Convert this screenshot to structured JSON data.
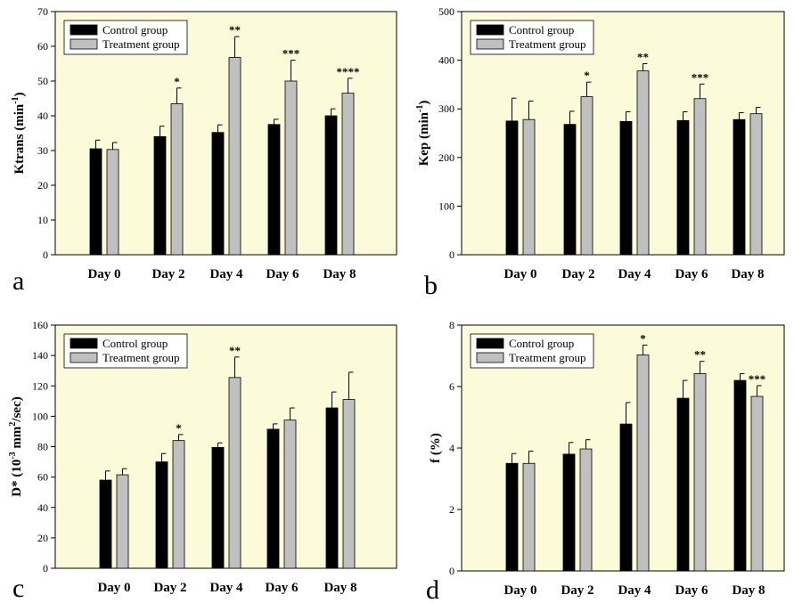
{
  "colors": {
    "plot_bg": "#fbfbd9",
    "control": "#000000",
    "treatment": "#c0c0c0",
    "error": "#000000"
  },
  "chart_data": [
    {
      "type": "bar",
      "panel_label": "a",
      "categories": [
        "Day 0",
        "Day 2",
        "Day 4",
        "Day 6",
        "Day 8"
      ],
      "ylabel_main": "Ktrans (min",
      "ylabel_sup": "-1",
      "ylabel_end": ")",
      "ylim": [
        0,
        70
      ],
      "yticks": [
        0,
        10,
        20,
        30,
        40,
        50,
        60,
        70
      ],
      "legend": "top-left",
      "series": [
        {
          "name": "Control group",
          "values": [
            30.5,
            34,
            35.2,
            37.5,
            40
          ],
          "errors": [
            2.5,
            3,
            2.2,
            1.5,
            2
          ]
        },
        {
          "name": "Treatment group",
          "values": [
            30.3,
            43.5,
            56.8,
            50,
            46.5
          ],
          "errors": [
            2,
            4.5,
            6,
            6,
            4.3
          ],
          "annotations": [
            "",
            "*",
            "**",
            "***",
            "****"
          ]
        }
      ]
    },
    {
      "type": "bar",
      "panel_label": "b",
      "categories": [
        "Day 0",
        "Day 2",
        "Day 4",
        "Day 6",
        "Day 8"
      ],
      "ylabel_main": "Kep (min",
      "ylabel_sup": "-1",
      "ylabel_end": ")",
      "ylim": [
        0,
        500
      ],
      "yticks": [
        0,
        100,
        200,
        300,
        400,
        500
      ],
      "legend": "top-left",
      "series": [
        {
          "name": "Control group",
          "values": [
            275,
            268,
            274,
            276,
            278
          ],
          "errors": [
            47,
            27,
            20,
            18,
            14
          ]
        },
        {
          "name": "Treatment group",
          "values": [
            278,
            325,
            378,
            321,
            290
          ],
          "errors": [
            38,
            30,
            15,
            30,
            13
          ],
          "annotations": [
            "",
            "*",
            "**",
            "***",
            ""
          ]
        }
      ]
    },
    {
      "type": "bar",
      "panel_label": "c",
      "categories": [
        "Day 0",
        "Day 2",
        "Day 4",
        "Day 6",
        "Day 8"
      ],
      "ylabel_main": "D* (10",
      "ylabel_sup": "-3",
      "ylabel_mid": " mm",
      "ylabel_sup2": "2",
      "ylabel_end": "/sec)",
      "ylim": [
        0,
        160
      ],
      "yticks": [
        0,
        20,
        40,
        60,
        80,
        100,
        120,
        140,
        160
      ],
      "legend": "top-left",
      "series": [
        {
          "name": "Control group",
          "values": [
            58,
            70,
            79.5,
            91.5,
            105.5
          ],
          "errors": [
            6,
            5.5,
            3,
            3.5,
            10.5
          ]
        },
        {
          "name": "Treatment group",
          "values": [
            61.5,
            84,
            125.5,
            97.5,
            111
          ],
          "errors": [
            4,
            4,
            13.5,
            8,
            18
          ],
          "annotations": [
            "",
            "*",
            "**",
            "",
            ""
          ]
        }
      ]
    },
    {
      "type": "bar",
      "panel_label": "d",
      "categories": [
        "Day 0",
        "Day 2",
        "Day 4",
        "Day 6",
        "Day 8"
      ],
      "ylabel_main": "f (%)",
      "ylim": [
        0,
        8
      ],
      "yticks": [
        0,
        2,
        4,
        6,
        8
      ],
      "legend": "top-left",
      "series": [
        {
          "name": "Control group",
          "values": [
            3.5,
            3.8,
            4.78,
            5.62,
            6.2
          ],
          "errors": [
            0.32,
            0.38,
            0.7,
            0.58,
            0.22
          ]
        },
        {
          "name": "Treatment group",
          "values": [
            3.5,
            3.97,
            7.03,
            6.42,
            5.68
          ],
          "errors": [
            0.4,
            0.3,
            0.32,
            0.4,
            0.35
          ],
          "annotations": [
            "",
            "",
            "*",
            "**",
            "***"
          ]
        }
      ]
    }
  ]
}
